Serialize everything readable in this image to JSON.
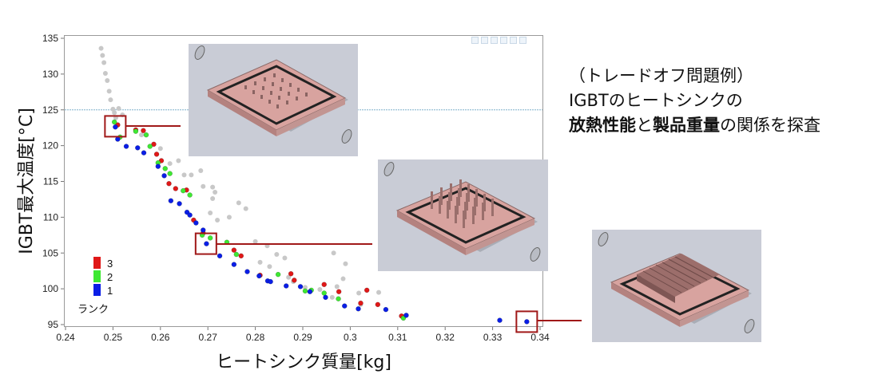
{
  "callout": {
    "line1": "（トレードオフ問題例）",
    "line2": "IGBTのヒートシンクの",
    "line3_bold1": "放熱性能",
    "line3_mid": "と",
    "line3_bold2": "製品重量",
    "line3_end": "の関係を探査"
  },
  "colors": {
    "rank1": "#0a1ee6",
    "rank2": "#3ee832",
    "rank3": "#e01818",
    "gray": "#c8c8c8",
    "threshold": "#7fb0cc",
    "marker": "#a01818",
    "plate": "#d8a39f",
    "thumb_bg": "#c9ccd6"
  },
  "chart_data": {
    "type": "scatter",
    "xlabel": "ヒートシンク質量[kg]",
    "ylabel": "IGBT最大温度[°C]",
    "xlim": [
      0.24,
      0.34
    ],
    "ylim": [
      95,
      135
    ],
    "xticks": [
      0.24,
      0.25,
      0.26,
      0.27,
      0.28,
      0.29,
      0.3,
      0.31,
      0.32,
      0.33,
      0.34
    ],
    "yticks": [
      95,
      100,
      105,
      110,
      115,
      120,
      125,
      130,
      135
    ],
    "xtick_labels": [
      "0.24",
      "0.25",
      "0.26",
      "0.27",
      "0.28",
      "0.29",
      "0.3",
      "0.31",
      "0.32",
      "0.33",
      "0.34"
    ],
    "ytick_labels": [
      "95",
      "100",
      "105",
      "110",
      "115",
      "120",
      "125",
      "130",
      "135"
    ],
    "threshold_y": 125,
    "legend": {
      "title": "ランク",
      "position": "bottom-left",
      "entries": [
        {
          "label": "3",
          "color": "#e01818"
        },
        {
          "label": "2",
          "color": "#3ee832"
        },
        {
          "label": "1",
          "color": "#0a1ee6"
        }
      ]
    },
    "highlight_boxes": [
      {
        "x": 0.2505,
        "y": 122.7
      },
      {
        "x": 0.2696,
        "y": 106.3
      },
      {
        "x": 0.3372,
        "y": 95.4
      }
    ],
    "series": [
      {
        "rank": "gray",
        "points": [
          [
            0.2475,
            133.6
          ],
          [
            0.2478,
            132.6
          ],
          [
            0.2481,
            131.6
          ],
          [
            0.2484,
            130.1
          ],
          [
            0.2488,
            129.1
          ],
          [
            0.2492,
            127.6
          ],
          [
            0.2495,
            126.4
          ],
          [
            0.25,
            125.1
          ],
          [
            0.2503,
            124.6
          ],
          [
            0.2506,
            123.9
          ],
          [
            0.2512,
            125.2
          ],
          [
            0.252,
            124.3
          ],
          [
            0.256,
            121.5
          ],
          [
            0.26,
            119.6
          ],
          [
            0.262,
            117.5
          ],
          [
            0.265,
            115.9
          ],
          [
            0.2665,
            115.9
          ],
          [
            0.2685,
            116.5
          ],
          [
            0.2638,
            117.9
          ],
          [
            0.271,
            112.6
          ],
          [
            0.2705,
            110.6
          ],
          [
            0.272,
            109.6
          ],
          [
            0.2745,
            110.0
          ],
          [
            0.2765,
            112.0
          ],
          [
            0.278,
            111.2
          ],
          [
            0.269,
            107.8
          ],
          [
            0.28,
            106.6
          ],
          [
            0.2825,
            106.0
          ],
          [
            0.2845,
            104.8
          ],
          [
            0.2862,
            104.3
          ],
          [
            0.281,
            103.7
          ],
          [
            0.283,
            103.1
          ],
          [
            0.287,
            101.6
          ],
          [
            0.288,
            101.0
          ],
          [
            0.2905,
            100.2
          ],
          [
            0.2936,
            99.9
          ],
          [
            0.2972,
            100.3
          ],
          [
            0.2985,
            101.4
          ],
          [
            0.2962,
            98.8
          ],
          [
            0.3022,
            97.8
          ],
          [
            0.3018,
            99.4
          ],
          [
            0.306,
            99.5
          ],
          [
            0.2965,
            105.0
          ],
          [
            0.299,
            103.5
          ],
          [
            0.3115,
            96.2
          ],
          [
            0.271,
            114.2
          ],
          [
            0.2715,
            113.5
          ],
          [
            0.269,
            114.3
          ]
        ]
      },
      {
        "rank": "3",
        "points": [
          [
            0.251,
            122.9
          ],
          [
            0.2548,
            122.2
          ],
          [
            0.2564,
            122.1
          ],
          [
            0.2586,
            120.2
          ],
          [
            0.2592,
            118.8
          ],
          [
            0.2602,
            117.9
          ],
          [
            0.2618,
            114.7
          ],
          [
            0.2632,
            114.0
          ],
          [
            0.2655,
            113.8
          ],
          [
            0.267,
            109.6
          ],
          [
            0.269,
            107.8
          ],
          [
            0.2755,
            105.4
          ],
          [
            0.277,
            104.6
          ],
          [
            0.281,
            101.9
          ],
          [
            0.2875,
            102.1
          ],
          [
            0.2882,
            101.2
          ],
          [
            0.2945,
            100.6
          ],
          [
            0.2976,
            99.6
          ],
          [
            0.3022,
            98.0
          ],
          [
            0.3035,
            99.8
          ],
          [
            0.3058,
            97.8
          ],
          [
            0.3108,
            96.2
          ]
        ]
      },
      {
        "rank": "2",
        "points": [
          [
            0.2503,
            123.3
          ],
          [
            0.2515,
            121.2
          ],
          [
            0.2548,
            122.0
          ],
          [
            0.257,
            121.5
          ],
          [
            0.2578,
            119.9
          ],
          [
            0.2595,
            117.6
          ],
          [
            0.261,
            116.8
          ],
          [
            0.262,
            116.1
          ],
          [
            0.2648,
            113.7
          ],
          [
            0.2662,
            113.1
          ],
          [
            0.2688,
            107.5
          ],
          [
            0.2705,
            107.1
          ],
          [
            0.274,
            106.5
          ],
          [
            0.276,
            104.8
          ],
          [
            0.2848,
            102.0
          ],
          [
            0.2905,
            99.7
          ],
          [
            0.2918,
            99.8
          ],
          [
            0.2945,
            99.4
          ],
          [
            0.2975,
            98.6
          ],
          [
            0.3112,
            95.9
          ]
        ]
      },
      {
        "rank": "1",
        "points": [
          [
            0.2505,
            122.6
          ],
          [
            0.251,
            120.9
          ],
          [
            0.2528,
            119.9
          ],
          [
            0.2552,
            119.7
          ],
          [
            0.2565,
            119.0
          ],
          [
            0.2595,
            117.1
          ],
          [
            0.2608,
            115.8
          ],
          [
            0.2622,
            112.3
          ],
          [
            0.264,
            111.9
          ],
          [
            0.2656,
            110.7
          ],
          [
            0.2662,
            110.3
          ],
          [
            0.2675,
            109.2
          ],
          [
            0.269,
            108.2
          ],
          [
            0.2697,
            106.3
          ],
          [
            0.2725,
            104.6
          ],
          [
            0.2755,
            103.4
          ],
          [
            0.2783,
            102.4
          ],
          [
            0.2808,
            101.8
          ],
          [
            0.2826,
            101.1
          ],
          [
            0.2832,
            101.0
          ],
          [
            0.2865,
            100.4
          ],
          [
            0.2895,
            100.3
          ],
          [
            0.2915,
            99.6
          ],
          [
            0.2948,
            98.8
          ],
          [
            0.2988,
            97.6
          ],
          [
            0.3017,
            97.2
          ],
          [
            0.3075,
            97.1
          ],
          [
            0.3118,
            96.3
          ],
          [
            0.3315,
            95.6
          ],
          [
            0.3372,
            95.4
          ]
        ]
      }
    ]
  }
}
